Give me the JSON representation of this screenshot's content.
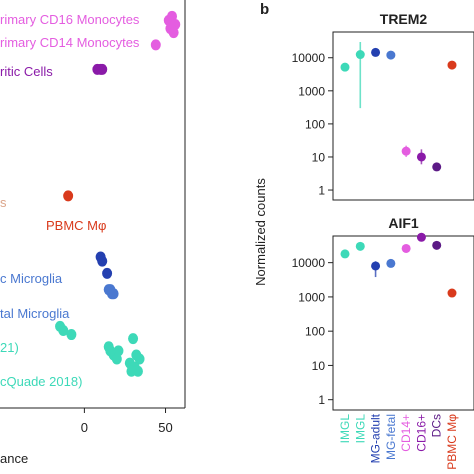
{
  "panel_b_label": "b",
  "shared_ylabel": "Normalized counts",
  "colors": {
    "IMGL": "#3dd9b8",
    "MG-adult": "#2440b0",
    "MG-fetal": "#4a78d0",
    "CD14+": "#e45de0",
    "CD16+": "#8a1aa8",
    "DCs": "#5c1a86",
    "PBMC Mφ": "#d93a1c",
    "label_left_muted": "#dba58a"
  },
  "chart_data": [
    {
      "type": "scatter",
      "panel": "a",
      "xlabel": "ance",
      "xticks": [
        0,
        50
      ],
      "xlim": [
        -52,
        62
      ],
      "ylim": [
        0,
        100
      ],
      "y_inverted_note": "labels",
      "labels": [
        {
          "text": "rimary CD16 Monocytes",
          "color": "#e45de0"
        },
        {
          "text": "rimary CD14 Monocytes",
          "color": "#e45de0"
        },
        {
          "text": "ritic Cells",
          "color": "#8a1aa8"
        },
        {
          "text": "s",
          "color": "#dba58a"
        },
        {
          "text": "PBMC Mφ",
          "color": "#d93a1c"
        },
        {
          "text": "c Microglia",
          "color": "#4a78d0"
        },
        {
          "text": "tal Microglia",
          "color": "#4a78d0"
        },
        {
          "text": "21)",
          "color": "#3dd9b8"
        },
        {
          "text": "cQuade 2018)",
          "color": "#3dd9b8"
        }
      ],
      "series": [
        {
          "group": "CD16",
          "color": "#e45de0",
          "points": [
            [
              52,
              95
            ],
            [
              54,
              96
            ],
            [
              56,
              94
            ],
            [
              53,
              93
            ],
            [
              55,
              92
            ]
          ]
        },
        {
          "group": "CD14",
          "color": "#e45de0",
          "points": [
            [
              44,
              89
            ]
          ]
        },
        {
          "group": "DC",
          "color": "#8a1aa8",
          "points": [
            [
              8,
              83
            ],
            [
              10,
              83
            ],
            [
              11,
              83
            ]
          ]
        },
        {
          "group": "PBMC",
          "color": "#d93a1c",
          "points": [
            [
              -10,
              52
            ]
          ]
        },
        {
          "group": "MG-adult",
          "color": "#2440b0",
          "points": [
            [
              10,
              37
            ],
            [
              11,
              36
            ],
            [
              14,
              33
            ]
          ]
        },
        {
          "group": "MG-fetal",
          "color": "#4a78d0",
          "points": [
            [
              15,
              29
            ],
            [
              17,
              28
            ],
            [
              18,
              28
            ],
            [
              16,
              29
            ]
          ]
        },
        {
          "group": "IMGL-a",
          "color": "#3dd9b8",
          "points": [
            [
              -15,
              20
            ],
            [
              -13,
              19
            ],
            [
              -8,
              18
            ]
          ]
        },
        {
          "group": "IMGL-b",
          "color": "#3dd9b8",
          "points": [
            [
              15,
              15
            ],
            [
              18,
              13
            ],
            [
              20,
              12
            ],
            [
              30,
              17
            ],
            [
              32,
              13
            ],
            [
              28,
              11
            ],
            [
              34,
              12
            ],
            [
              31,
              10
            ],
            [
              33,
              9
            ],
            [
              29,
              9
            ],
            [
              21,
              14
            ],
            [
              16,
              14
            ]
          ]
        }
      ]
    },
    {
      "type": "scatter",
      "panel": "b-top",
      "title": "TREM2",
      "ylabel": "Normalized counts",
      "yscale": "log",
      "ylim": [
        0.5,
        60000
      ],
      "yticks": [
        1,
        10,
        100,
        1000,
        10000
      ],
      "categories": [
        "IMGL",
        "IMGL",
        "MG-adult",
        "MG-fetal",
        "CD14+",
        "CD16+",
        "DCs",
        "PBMC Mφ"
      ],
      "values": [
        5200,
        12500,
        14500,
        12000,
        15,
        10,
        5,
        6000
      ],
      "error_low": [
        null,
        300,
        null,
        null,
        10,
        6,
        null,
        null
      ],
      "error_high": [
        null,
        30000,
        null,
        null,
        22,
        17,
        null,
        null
      ]
    },
    {
      "type": "scatter",
      "panel": "b-bottom",
      "title": "AIF1",
      "yscale": "log",
      "ylim": [
        0.5,
        60000
      ],
      "yticks": [
        1,
        10,
        100,
        1000,
        10000
      ],
      "categories": [
        "IMGL",
        "IMGL",
        "MG-adult",
        "MG-fetal",
        "CD14+",
        "CD16+",
        "DCs",
        "PBMC Mφ"
      ],
      "values": [
        18000,
        30000,
        8000,
        9500,
        26000,
        55000,
        32000,
        1300
      ],
      "error_low": [
        null,
        null,
        3800,
        null,
        null,
        null,
        null,
        null
      ],
      "error_high": [
        null,
        null,
        11000,
        null,
        null,
        null,
        null,
        null
      ]
    }
  ]
}
